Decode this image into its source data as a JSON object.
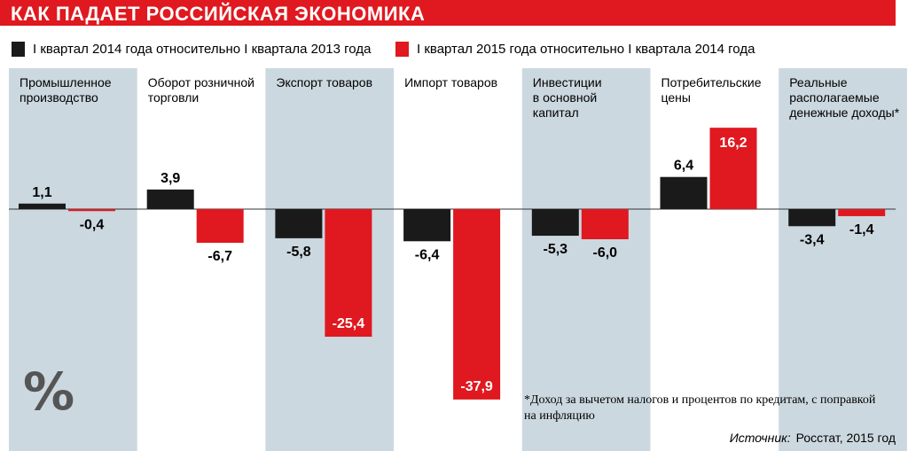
{
  "title": "КАК ПАДАЕТ РОССИЙСКАЯ ЭКОНОМИКА",
  "colors": {
    "series1": "#1a1a1a",
    "series2": "#e0181f",
    "panel": "#ccd8df"
  },
  "percent_icon": "%",
  "footnote": "*Доход за вычетом налогов и процентов по кредитам, с поправкой на инфляцию",
  "source": {
    "label": "Источник:",
    "value": "Росстат, 2015 год"
  },
  "chart_data": {
    "type": "bar",
    "categories": [
      "Промышленное производство",
      "Оборот розничной торговли",
      "Экспорт товаров",
      "Импорт товаров",
      "Инвестиции в основной капитал",
      "Потребительские цены",
      "Реальные располагаемые денежные доходы*"
    ],
    "category_lines": [
      [
        "Промышленное",
        "производство"
      ],
      [
        "Оборот розничной",
        "торговли"
      ],
      [
        "Экспорт товаров"
      ],
      [
        "Импорт товаров"
      ],
      [
        "Инвестиции",
        "в основной",
        "капитал"
      ],
      [
        "Потребительские",
        "цены"
      ],
      [
        "Реальные",
        "располагаемые",
        "денежные доходы*"
      ]
    ],
    "series": [
      {
        "name": "I квартал 2014 года относительно I квартала 2013 года",
        "values": [
          1.1,
          3.9,
          -5.8,
          -6.4,
          -5.3,
          6.4,
          -3.4
        ],
        "labels": [
          "1,1",
          "3,9",
          "-5,8",
          "-6,4",
          "-5,3",
          "6,4",
          "-3,4"
        ]
      },
      {
        "name": "I квартал 2015 года относительно I квартала 2014 года",
        "values": [
          -0.4,
          -6.7,
          -25.4,
          -37.9,
          -6.0,
          16.2,
          -1.4
        ],
        "labels": [
          "-0,4",
          "-6,7",
          "-25,4",
          "-37,9",
          "-6,0",
          "16,2",
          "-1,4"
        ]
      }
    ],
    "shaded_categories": [
      0,
      2,
      4,
      6
    ],
    "grid": false,
    "legend": "top-left"
  }
}
